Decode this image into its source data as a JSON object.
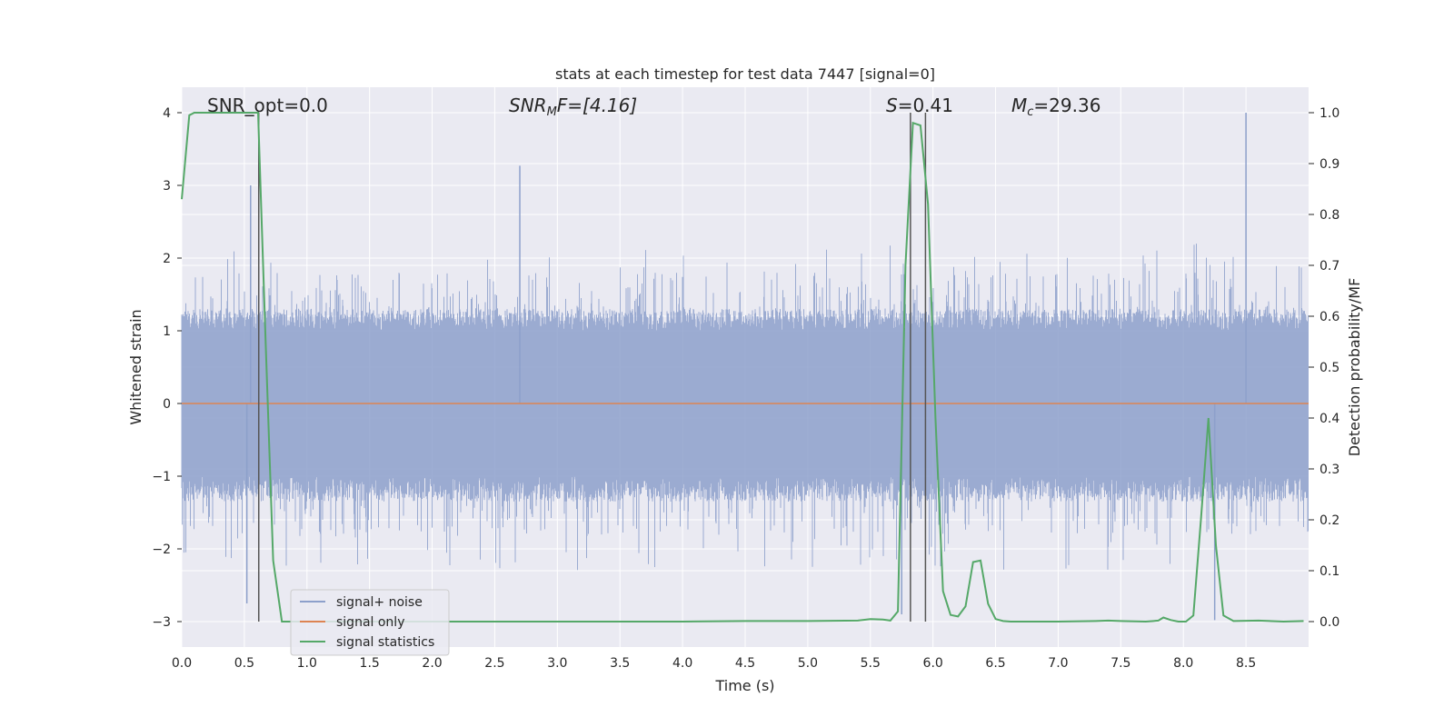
{
  "chart_data": {
    "type": "line",
    "title": "stats at each timestep for test data 7447 [signal=0]",
    "xlabel": "Time (s)",
    "ylabel": "Whitened strain",
    "ylabel_right": "Detection probability/MF",
    "xlim": [
      0.0,
      9.0
    ],
    "ylim": [
      -3.35,
      4.35
    ],
    "ylim_right": [
      -0.05,
      1.05
    ],
    "x_ticks": [
      "0.0",
      "0.5",
      "1.0",
      "1.5",
      "2.0",
      "2.5",
      "3.0",
      "3.5",
      "4.0",
      "4.5",
      "5.0",
      "5.5",
      "6.0",
      "6.5",
      "7.0",
      "7.5",
      "8.0",
      "8.5"
    ],
    "y_ticks": [
      "4",
      "3",
      "2",
      "1",
      "0",
      "−1",
      "−2",
      "−3"
    ],
    "y_ticks_right": [
      "1.0",
      "0.9",
      "0.8",
      "0.7",
      "0.6",
      "0.5",
      "0.4",
      "0.3",
      "0.2",
      "0.1",
      "0.0"
    ],
    "grid": true,
    "legend_position": "lower-left",
    "annotations": {
      "snr_opt": "SNR_opt=0.0",
      "snr_mf_main": "SNR",
      "snr_mf_sub": "M",
      "snr_mf_rest": "F=[4.16]",
      "s_italic": "S",
      "s_rest": "=0.41",
      "mc_italic": "M",
      "mc_sub": "c",
      "mc_rest": "=29.36"
    },
    "series": [
      {
        "name": "signal+ noise",
        "color": "#8da0cb",
        "note": "noisy whitened strain, approx. ±1.2 envelope with spikes up to 4.0 (t≈8.5) and down to −2.9",
        "peaks": [
          [
            0.55,
            3.0
          ],
          [
            2.7,
            3.27
          ],
          [
            8.5,
            4.0
          ],
          [
            8.25,
            -2.98
          ],
          [
            0.52,
            -2.75
          ],
          [
            5.75,
            -2.9
          ]
        ]
      },
      {
        "name": "signal only",
        "color": "#dd8452",
        "x": [
          0.0,
          9.0
        ],
        "y": [
          0.0,
          0.0
        ]
      },
      {
        "name": "signal statistics",
        "color": "#55a868",
        "axis": "right",
        "x": [
          0.0,
          0.06,
          0.1,
          0.2,
          0.3,
          0.4,
          0.5,
          0.55,
          0.61,
          0.67,
          0.73,
          0.8,
          1.0,
          2.0,
          3.0,
          4.0,
          4.5,
          5.0,
          5.4,
          5.5,
          5.6,
          5.66,
          5.72,
          5.78,
          5.84,
          5.9,
          5.96,
          6.02,
          6.08,
          6.14,
          6.2,
          6.26,
          6.32,
          6.38,
          6.44,
          6.5,
          6.56,
          6.62,
          6.7,
          7.0,
          7.3,
          7.4,
          7.5,
          7.7,
          7.8,
          7.84,
          7.9,
          7.96,
          8.02,
          8.08,
          8.14,
          8.2,
          8.26,
          8.32,
          8.4,
          8.6,
          8.8,
          8.96
        ],
        "y": [
          0.83,
          0.995,
          1.0,
          1.0,
          1.0,
          1.0,
          1.0,
          1.0,
          1.0,
          0.55,
          0.12,
          0.0,
          0.0,
          0.0,
          0.0,
          0.0,
          0.001,
          0.001,
          0.002,
          0.005,
          0.004,
          0.002,
          0.02,
          0.7,
          0.98,
          0.975,
          0.82,
          0.4,
          0.06,
          0.013,
          0.01,
          0.03,
          0.117,
          0.12,
          0.035,
          0.005,
          0.001,
          0.0,
          0.0,
          0.0,
          0.001,
          0.002,
          0.001,
          0.0,
          0.002,
          0.008,
          0.003,
          0.0,
          0.0,
          0.012,
          0.2,
          0.4,
          0.15,
          0.012,
          0.001,
          0.002,
          0.0,
          0.001
        ]
      }
    ],
    "vertical_markers": [
      0.615,
      5.82,
      5.94
    ]
  }
}
